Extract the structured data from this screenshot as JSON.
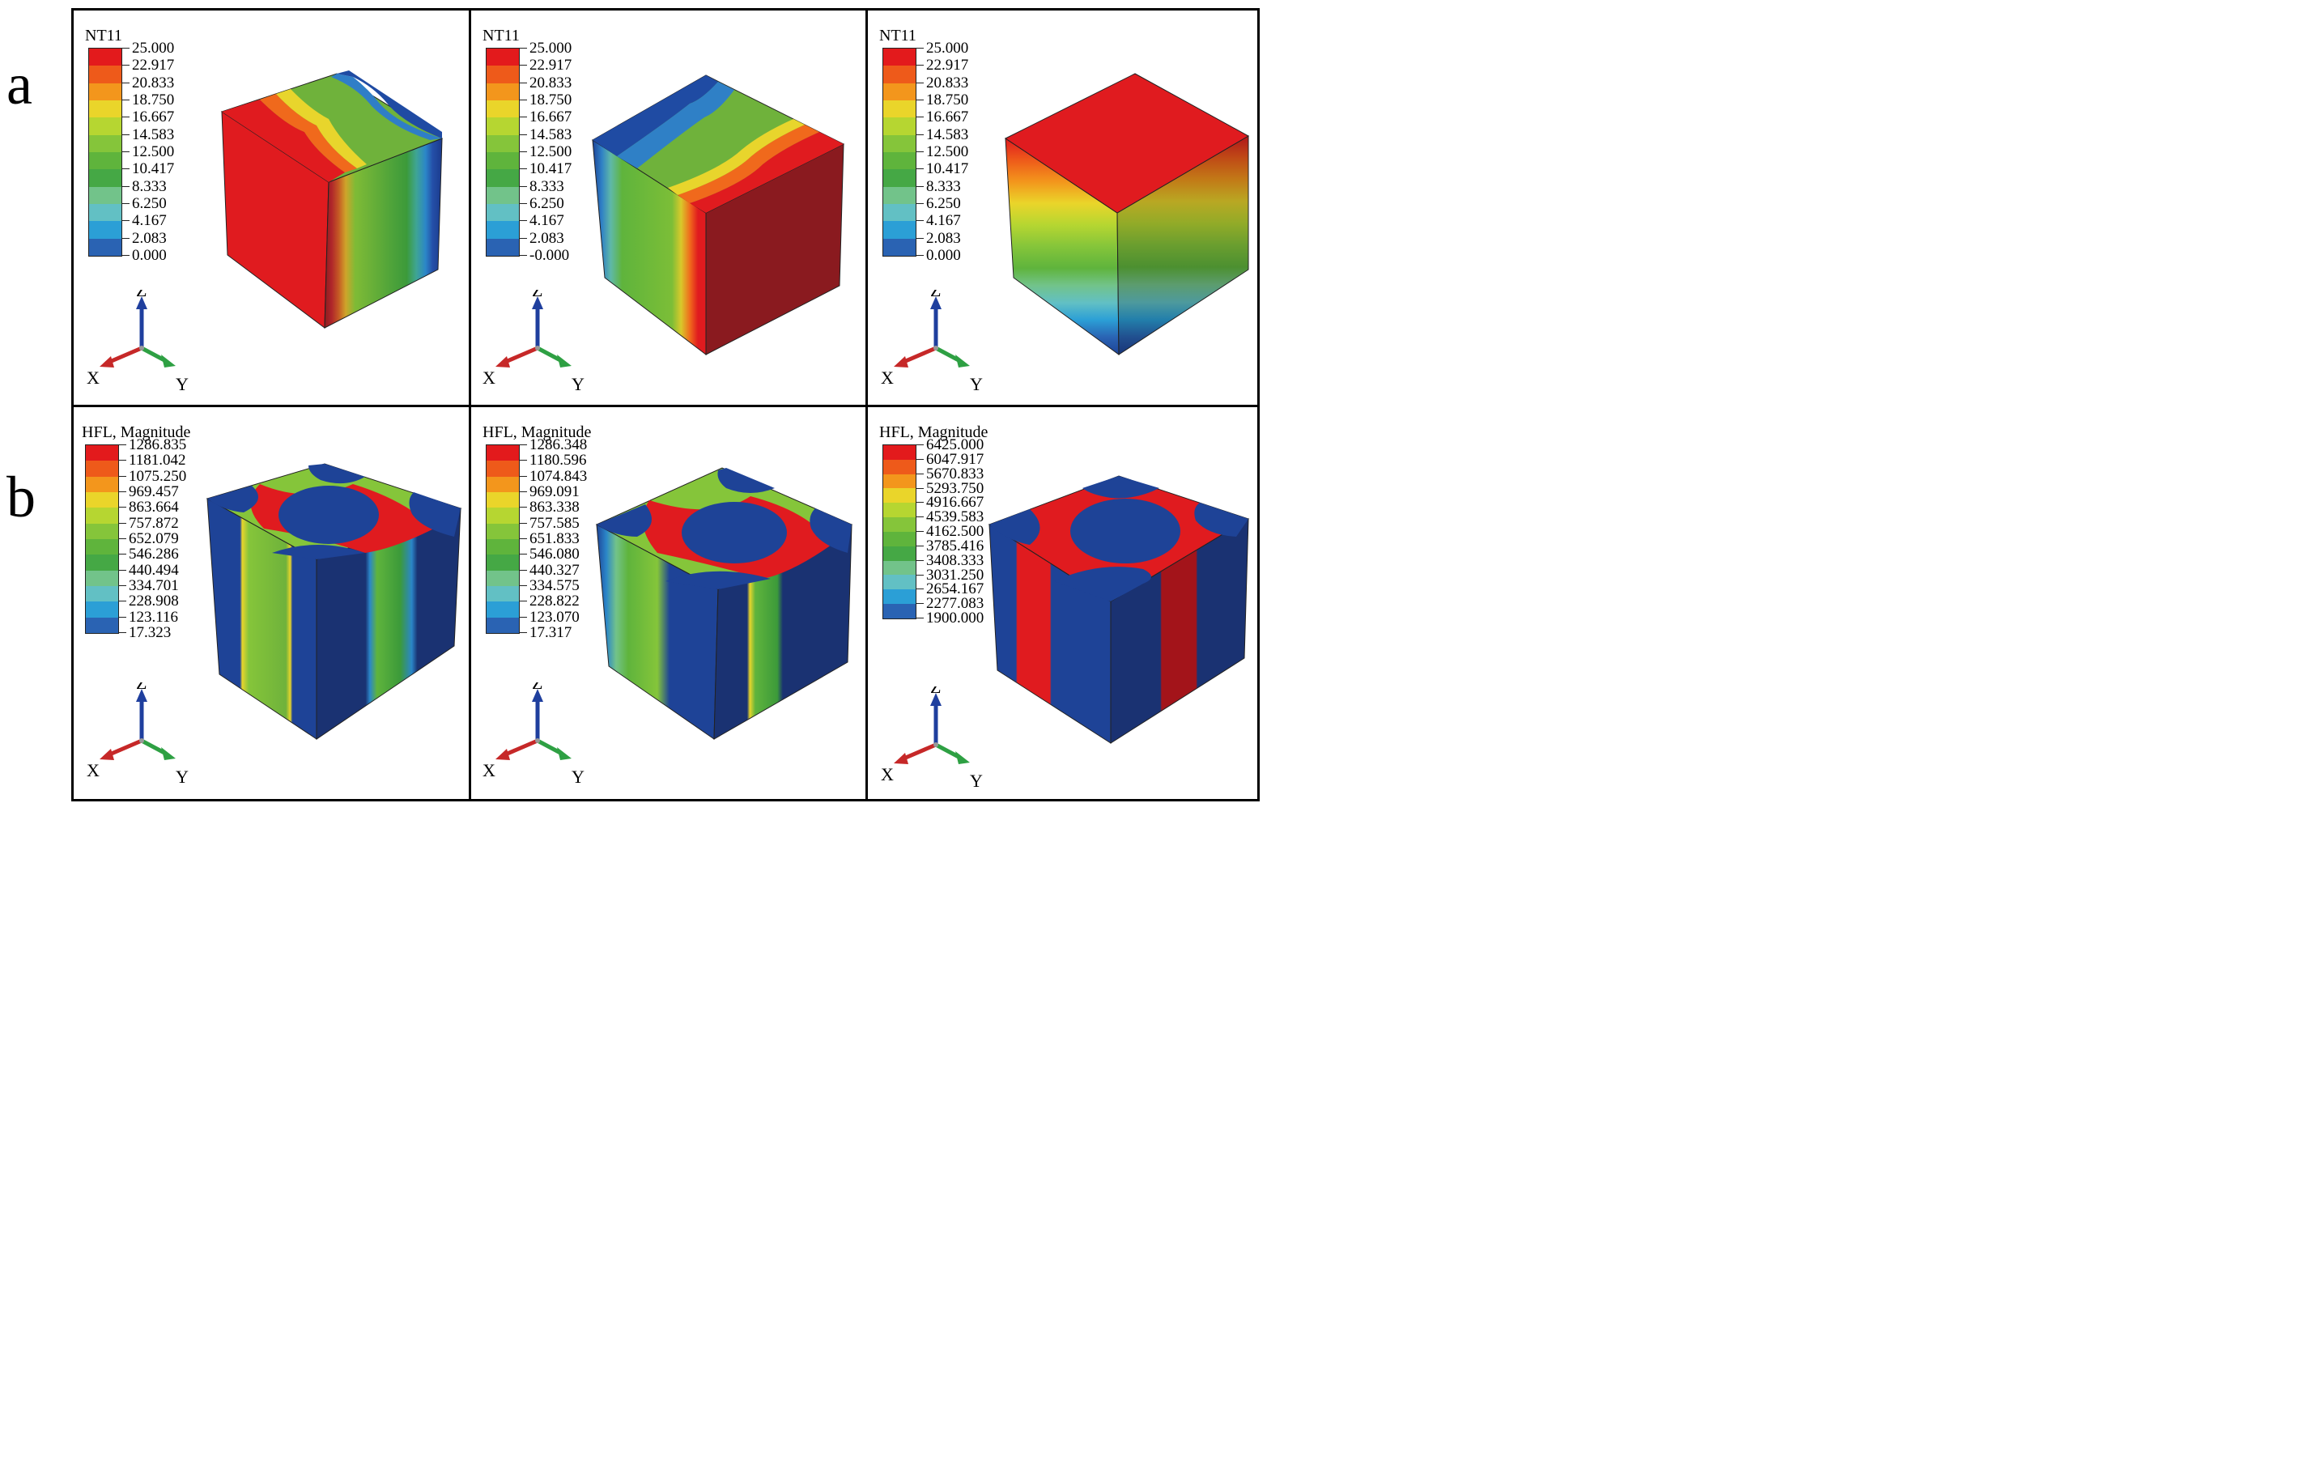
{
  "row_labels": [
    "a",
    "b"
  ],
  "panels": [
    {
      "id": "a1",
      "legend_title": "NT11",
      "ticks": [
        "25.000",
        "22.917",
        "20.833",
        "18.750",
        "16.667",
        "14.583",
        "12.500",
        "10.417",
        "8.333",
        "6.250",
        "4.167",
        "2.083",
        "0.000"
      ]
    },
    {
      "id": "a2",
      "legend_title": "NT11",
      "ticks": [
        "25.000",
        "22.917",
        "20.833",
        "18.750",
        "16.667",
        "14.583",
        "12.500",
        "10.417",
        "8.333",
        "6.250",
        "4.167",
        "2.083",
        "-0.000"
      ]
    },
    {
      "id": "a3",
      "legend_title": "NT11",
      "ticks": [
        "25.000",
        "22.917",
        "20.833",
        "18.750",
        "16.667",
        "14.583",
        "12.500",
        "10.417",
        "8.333",
        "6.250",
        "4.167",
        "2.083",
        "0.000"
      ]
    },
    {
      "id": "b1",
      "legend_title": "HFL, Magnitude",
      "ticks": [
        "1286.835",
        "1181.042",
        "1075.250",
        "969.457",
        "863.664",
        "757.872",
        "652.079",
        "546.286",
        "440.494",
        "334.701",
        "228.908",
        "123.116",
        "17.323"
      ]
    },
    {
      "id": "b2",
      "legend_title": "HFL, Magnitude",
      "ticks": [
        "1286.348",
        "1180.596",
        "1074.843",
        "969.091",
        "863.338",
        "757.585",
        "651.833",
        "546.080",
        "440.327",
        "334.575",
        "228.822",
        "123.070",
        "17.317"
      ]
    },
    {
      "id": "b3",
      "legend_title": "HFL, Magnitude",
      "ticks": [
        "6425.000",
        "6047.917",
        "5670.833",
        "5293.750",
        "4916.667",
        "4539.583",
        "4162.500",
        "3785.416",
        "3408.333",
        "3031.250",
        "2654.167",
        "2277.083",
        "1900.000"
      ]
    }
  ],
  "axis_labels": {
    "x": "X",
    "y": "Y",
    "z": "Z"
  },
  "colors": {
    "contour_scale": [
      "#e31a1c",
      "#ee5a1a",
      "#f3961c",
      "#ead52a",
      "#b6d631",
      "#85c53a",
      "#5fb43c",
      "#45a845",
      "#72c38a",
      "#62c0c4",
      "#2b9fd6",
      "#2a63b3",
      "#1e4397"
    ],
    "axis_x": "#c62828",
    "axis_y": "#2ea043",
    "axis_z": "#1f3f9e"
  }
}
